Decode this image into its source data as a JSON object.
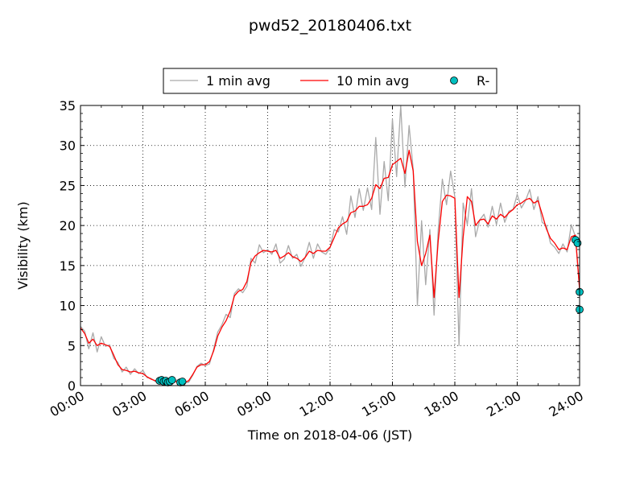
{
  "chart_data": {
    "type": "line",
    "title": "pwd52_20180406.txt",
    "xlabel": "Time on 2018-04-06 (JST)",
    "ylabel": "Visibility (km)",
    "xlim": [
      0,
      24
    ],
    "ylim": [
      0,
      35
    ],
    "x_ticks": [
      0,
      3,
      6,
      9,
      12,
      15,
      18,
      21,
      24
    ],
    "x_tick_labels": [
      "00:00",
      "03:00",
      "06:00",
      "09:00",
      "12:00",
      "15:00",
      "18:00",
      "21:00",
      "24:00"
    ],
    "y_ticks": [
      0,
      5,
      10,
      15,
      20,
      25,
      30,
      35
    ],
    "y_tick_labels": [
      "0",
      "5",
      "10",
      "15",
      "20",
      "25",
      "30",
      "35"
    ],
    "grid": true,
    "legend_position": "top-center",
    "series": [
      {
        "name": "1 min avg",
        "style": "line",
        "color": "#aaaaaa",
        "x": [
          0.0,
          0.2,
          0.4,
          0.6,
          0.8,
          1.0,
          1.2,
          1.4,
          1.6,
          1.8,
          2.0,
          2.2,
          2.4,
          2.6,
          2.8,
          3.0,
          3.2,
          3.4,
          3.6,
          3.8,
          4.0,
          4.2,
          4.4,
          4.6,
          4.8,
          5.0,
          5.2,
          5.4,
          5.6,
          5.8,
          6.0,
          6.2,
          6.4,
          6.6,
          6.8,
          7.0,
          7.2,
          7.4,
          7.6,
          7.8,
          8.0,
          8.2,
          8.4,
          8.6,
          8.8,
          9.0,
          9.2,
          9.4,
          9.6,
          9.8,
          10.0,
          10.2,
          10.4,
          10.6,
          10.8,
          11.0,
          11.2,
          11.4,
          11.6,
          11.8,
          12.0,
          12.2,
          12.4,
          12.6,
          12.8,
          13.0,
          13.2,
          13.4,
          13.6,
          13.8,
          14.0,
          14.2,
          14.4,
          14.6,
          14.8,
          15.0,
          15.2,
          15.4,
          15.6,
          15.8,
          16.0,
          16.2,
          16.4,
          16.6,
          16.8,
          17.0,
          17.2,
          17.4,
          17.6,
          17.8,
          18.0,
          18.2,
          18.4,
          18.6,
          18.8,
          19.0,
          19.2,
          19.4,
          19.6,
          19.8,
          20.0,
          20.2,
          20.4,
          20.6,
          20.8,
          21.0,
          21.2,
          21.4,
          21.6,
          21.8,
          22.0,
          22.2,
          22.4,
          22.6,
          22.8,
          23.0,
          23.2,
          23.4,
          23.6,
          23.8,
          24.0
        ],
        "y": [
          7.4,
          6.8,
          4.6,
          6.6,
          4.2,
          6.1,
          4.9,
          5.1,
          3.4,
          2.9,
          1.7,
          2.3,
          1.4,
          2.1,
          1.5,
          1.9,
          1.0,
          0.9,
          0.5,
          0.6,
          0.3,
          0.2,
          0.4,
          0.7,
          0.5,
          0.3,
          0.4,
          1.3,
          2.4,
          2.8,
          2.5,
          2.7,
          4.5,
          6.7,
          7.6,
          8.9,
          8.5,
          11.5,
          12.1,
          11.6,
          12.4,
          15.9,
          15.3,
          17.6,
          16.6,
          17.0,
          16.4,
          17.7,
          15.3,
          15.8,
          17.5,
          15.9,
          16.4,
          14.9,
          16.0,
          17.9,
          15.9,
          17.7,
          16.7,
          16.4,
          17.2,
          19.5,
          19.2,
          21.1,
          18.9,
          23.7,
          21.0,
          24.6,
          21.9,
          24.7,
          22.0,
          31.0,
          21.4,
          28.0,
          23.1,
          33.3,
          26.1,
          35.0,
          24.8,
          32.5,
          27.0,
          10.0,
          20.6,
          12.6,
          19.5,
          8.8,
          19.4,
          25.8,
          22.6,
          26.8,
          23.6,
          5.0,
          22.8,
          20.1,
          24.6,
          18.6,
          20.7,
          21.4,
          19.8,
          22.4,
          20.1,
          22.8,
          20.4,
          21.8,
          22.0,
          23.9,
          22.2,
          23.1,
          24.5,
          22.0,
          23.6,
          20.4,
          20.0,
          17.8,
          17.3,
          16.5,
          17.7,
          16.7,
          20.1,
          18.6,
          12.1
        ]
      },
      {
        "name": "10 min avg",
        "style": "line",
        "color": "#ff0000",
        "x": [
          0.0,
          0.2,
          0.4,
          0.6,
          0.8,
          1.0,
          1.2,
          1.4,
          1.6,
          1.8,
          2.0,
          2.2,
          2.4,
          2.6,
          2.8,
          3.0,
          3.2,
          3.4,
          3.6,
          3.8,
          4.0,
          4.2,
          4.4,
          4.6,
          4.8,
          5.0,
          5.2,
          5.4,
          5.6,
          5.8,
          6.0,
          6.2,
          6.4,
          6.6,
          6.8,
          7.0,
          7.2,
          7.4,
          7.6,
          7.8,
          8.0,
          8.2,
          8.4,
          8.6,
          8.8,
          9.0,
          9.2,
          9.4,
          9.6,
          9.8,
          10.0,
          10.2,
          10.4,
          10.6,
          10.8,
          11.0,
          11.2,
          11.4,
          11.6,
          11.8,
          12.0,
          12.2,
          12.4,
          12.6,
          12.8,
          13.0,
          13.2,
          13.4,
          13.6,
          13.8,
          14.0,
          14.2,
          14.4,
          14.6,
          14.8,
          15.0,
          15.2,
          15.4,
          15.6,
          15.8,
          16.0,
          16.2,
          16.4,
          16.6,
          16.8,
          17.0,
          17.2,
          17.4,
          17.6,
          17.8,
          18.0,
          18.2,
          18.4,
          18.6,
          18.8,
          19.0,
          19.2,
          19.4,
          19.6,
          19.8,
          20.0,
          20.2,
          20.4,
          20.6,
          20.8,
          21.0,
          21.2,
          21.4,
          21.6,
          21.8,
          22.0,
          22.2,
          22.4,
          22.6,
          22.8,
          23.0,
          23.2,
          23.4,
          23.6,
          23.8,
          24.0
        ],
        "y": [
          7.2,
          6.5,
          5.3,
          5.8,
          5.0,
          5.3,
          5.1,
          4.9,
          3.8,
          2.6,
          2.0,
          1.9,
          1.7,
          1.8,
          1.6,
          1.5,
          1.1,
          0.8,
          0.6,
          0.5,
          0.4,
          0.3,
          0.4,
          0.5,
          0.5,
          0.4,
          0.6,
          1.4,
          2.3,
          2.6,
          2.6,
          3.0,
          4.3,
          6.2,
          7.3,
          8.1,
          9.3,
          11.2,
          11.8,
          12.0,
          13.0,
          15.4,
          16.2,
          16.6,
          16.9,
          16.8,
          16.7,
          16.9,
          15.9,
          16.2,
          16.6,
          16.1,
          15.9,
          15.5,
          16.0,
          16.8,
          16.5,
          16.9,
          16.8,
          16.8,
          17.3,
          18.5,
          19.7,
          20.2,
          20.5,
          21.6,
          21.8,
          22.4,
          22.4,
          22.6,
          23.4,
          25.1,
          24.6,
          25.9,
          26.0,
          27.6,
          28.0,
          28.4,
          26.5,
          29.4,
          26.8,
          18.0,
          15.0,
          16.5,
          18.8,
          11.0,
          18.0,
          23.0,
          23.8,
          23.7,
          23.4,
          11.0,
          18.5,
          23.6,
          23.0,
          20.0,
          20.7,
          20.8,
          20.2,
          21.2,
          20.8,
          21.4,
          21.0,
          21.6,
          22.0,
          22.6,
          22.8,
          23.2,
          23.4,
          22.8,
          23.1,
          21.4,
          19.6,
          18.4,
          17.8,
          17.0,
          17.2,
          17.0,
          18.6,
          18.8,
          12.0
        ]
      },
      {
        "name": "R-",
        "style": "marker",
        "color": "#00bfbf",
        "x": [
          3.8,
          3.9,
          4.0,
          4.1,
          4.2,
          4.3,
          4.4,
          4.8,
          4.9,
          23.8,
          23.9,
          24.0,
          24.0
        ],
        "y": [
          0.6,
          0.7,
          0.5,
          0.6,
          0.4,
          0.5,
          0.7,
          0.4,
          0.5,
          18.2,
          17.8,
          11.7,
          9.5
        ]
      }
    ]
  }
}
